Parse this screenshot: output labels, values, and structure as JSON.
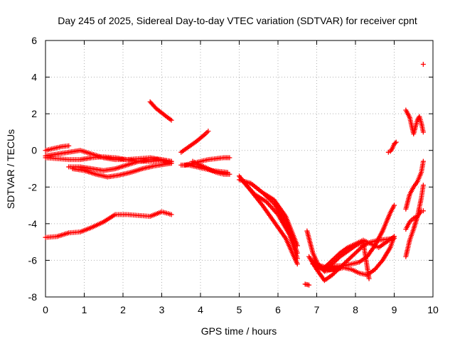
{
  "chart_data": {
    "type": "scatter",
    "title": "Day 245 of 2025, Sidereal Day-to-day VTEC variation (SDTVAR) for receiver cpnt",
    "xlabel": "GPS time / hours",
    "ylabel": "SDTVAR / TECUs",
    "xlim": [
      0,
      10
    ],
    "ylim": [
      -8,
      6
    ],
    "x_ticks": [
      "0",
      "1",
      "2",
      "3",
      "4",
      "5",
      "6",
      "7",
      "8",
      "9",
      "10"
    ],
    "y_ticks": [
      "-8",
      "-6",
      "-4",
      "-2",
      "0",
      "2",
      "4",
      "6"
    ],
    "grid": true,
    "marker": "+",
    "marker_color": "#ff0000",
    "series": [
      {
        "x": [
          0.0,
          0.2,
          0.4,
          0.6
        ],
        "y": [
          0.0,
          0.1,
          0.2,
          0.25
        ]
      },
      {
        "x": [
          0.0,
          0.3,
          0.6,
          0.9,
          1.2,
          1.5,
          1.8,
          2.1,
          2.4,
          2.7,
          3.0,
          3.25
        ],
        "y": [
          -0.3,
          -0.2,
          -0.1,
          0.0,
          -0.2,
          -0.4,
          -0.5,
          -0.5,
          -0.45,
          -0.4,
          -0.5,
          -0.6
        ]
      },
      {
        "x": [
          0.0,
          0.3,
          0.6,
          0.9,
          1.2,
          1.5,
          1.8,
          2.1,
          2.4,
          2.7,
          3.0,
          3.25
        ],
        "y": [
          -0.4,
          -0.45,
          -0.5,
          -0.5,
          -0.4,
          -0.35,
          -0.4,
          -0.5,
          -0.6,
          -0.6,
          -0.55,
          -0.7
        ]
      },
      {
        "x": [
          0.6,
          0.9,
          1.2,
          1.5,
          1.8,
          2.1,
          2.4,
          2.7,
          3.0,
          3.25
        ],
        "y": [
          -0.9,
          -0.9,
          -1.0,
          -1.1,
          -1.0,
          -0.8,
          -0.6,
          -0.5,
          -0.5,
          -0.6
        ]
      },
      {
        "x": [
          0.7,
          1.0,
          1.3,
          1.6,
          1.9,
          2.2,
          2.5,
          2.8,
          3.1,
          3.25
        ],
        "y": [
          -1.0,
          -1.1,
          -1.3,
          -1.45,
          -1.35,
          -1.2,
          -1.0,
          -0.85,
          -0.75,
          -0.7
        ]
      },
      {
        "x": [
          0.0,
          0.3,
          0.6,
          0.9,
          1.2,
          1.5,
          1.8,
          2.1,
          2.4,
          2.7,
          3.0,
          3.25
        ],
        "y": [
          -4.75,
          -4.7,
          -4.5,
          -4.45,
          -4.2,
          -3.9,
          -3.5,
          -3.5,
          -3.55,
          -3.6,
          -3.35,
          -3.5
        ]
      },
      {
        "x": [
          2.7,
          2.85,
          3.0,
          3.15,
          3.25
        ],
        "y": [
          2.65,
          2.3,
          2.05,
          1.8,
          1.65
        ]
      },
      {
        "x": [
          3.5,
          3.7,
          3.9,
          4.1,
          4.2
        ],
        "y": [
          -0.1,
          0.2,
          0.5,
          0.85,
          1.05
        ]
      },
      {
        "x": [
          3.5,
          3.7,
          3.9,
          4.1,
          4.3,
          4.5,
          4.7
        ],
        "y": [
          -0.8,
          -0.8,
          -0.9,
          -1.0,
          -1.1,
          -1.15,
          -1.2
        ]
      },
      {
        "x": [
          3.6,
          3.8,
          4.0,
          4.2,
          4.4,
          4.6,
          4.75
        ],
        "y": [
          -0.8,
          -0.7,
          -0.6,
          -0.5,
          -0.45,
          -0.4,
          -0.4
        ]
      },
      {
        "x": [
          3.8,
          4.0,
          4.2,
          4.4,
          4.6,
          4.75
        ],
        "y": [
          -0.6,
          -0.8,
          -1.0,
          -1.2,
          -1.3,
          -1.3
        ]
      },
      {
        "x": [
          5.0,
          5.3,
          5.6,
          5.9,
          6.2,
          6.5
        ],
        "y": [
          -1.4,
          -2.2,
          -3.0,
          -3.9,
          -4.8,
          -6.2
        ]
      },
      {
        "x": [
          5.0,
          5.3,
          5.6,
          5.9,
          6.2,
          6.5
        ],
        "y": [
          -1.6,
          -1.8,
          -2.3,
          -2.9,
          -3.9,
          -5.6
        ]
      },
      {
        "x": [
          5.1,
          5.4,
          5.7,
          6.0,
          6.3,
          6.5
        ],
        "y": [
          -1.7,
          -2.4,
          -2.8,
          -3.5,
          -4.6,
          -5.9
        ]
      },
      {
        "x": [
          5.3,
          5.6,
          5.9,
          6.2,
          6.5
        ],
        "y": [
          -1.8,
          -2.3,
          -2.7,
          -3.6,
          -5.2
        ]
      },
      {
        "x": [
          6.7,
          6.8
        ],
        "y": [
          -7.3,
          -7.35
        ]
      },
      {
        "x": [
          6.75,
          6.9,
          7.05,
          7.2,
          7.4,
          7.6
        ],
        "y": [
          -4.4,
          -5.6,
          -6.3,
          -6.6,
          -6.5,
          -6.4
        ]
      },
      {
        "x": [
          6.8,
          7.0,
          7.2,
          7.4,
          7.6,
          7.8,
          8.0,
          8.2,
          8.4,
          8.6,
          8.8,
          9.0
        ],
        "y": [
          -5.8,
          -6.5,
          -7.1,
          -6.8,
          -6.4,
          -6.0,
          -5.6,
          -5.2,
          -5.0,
          -4.9,
          -4.85,
          -4.8
        ]
      },
      {
        "x": [
          6.9,
          7.1,
          7.3,
          7.5,
          7.7,
          7.9,
          8.1,
          8.3,
          8.5,
          8.7,
          8.9,
          9.0
        ],
        "y": [
          -6.0,
          -6.3,
          -6.4,
          -6.3,
          -6.3,
          -6.2,
          -6.1,
          -5.8,
          -5.2,
          -4.4,
          -3.4,
          -3.0
        ]
      },
      {
        "x": [
          6.9,
          7.1,
          7.3,
          7.5,
          7.7,
          7.9,
          8.1,
          8.3,
          8.5,
          8.7,
          8.9,
          9.0
        ],
        "y": [
          -6.2,
          -6.4,
          -6.5,
          -6.5,
          -6.4,
          -6.5,
          -6.7,
          -6.8,
          -6.5,
          -6.0,
          -5.3,
          -4.7
        ]
      },
      {
        "x": [
          7.0,
          7.2,
          7.4,
          7.6,
          7.8,
          8.0,
          8.2,
          8.4,
          8.6,
          8.8,
          9.0
        ],
        "y": [
          -6.5,
          -6.4,
          -6.0,
          -5.6,
          -5.3,
          -5.1,
          -4.9,
          -5.1,
          -5.3,
          -5.0,
          -4.7
        ]
      },
      {
        "x": [
          7.2,
          7.4,
          7.6,
          7.8,
          8.0,
          8.2,
          8.35
        ],
        "y": [
          -6.6,
          -6.2,
          -5.8,
          -5.5,
          -5.2,
          -5.0,
          -7.0
        ]
      },
      {
        "x": [
          8.85,
          8.9,
          8.95,
          9.0,
          9.05
        ],
        "y": [
          -0.1,
          -0.05,
          0.1,
          0.35,
          0.45
        ]
      },
      {
        "x": [
          9.3,
          9.4,
          9.5,
          9.55,
          9.6,
          9.65,
          9.7,
          9.75
        ],
        "y": [
          2.2,
          1.8,
          0.9,
          1.3,
          1.65,
          1.85,
          1.5,
          1.0
        ]
      },
      {
        "x": [
          9.75
        ],
        "y": [
          4.7
        ]
      },
      {
        "x": [
          9.3,
          9.4,
          9.5,
          9.6,
          9.7,
          9.75
        ],
        "y": [
          -3.2,
          -2.4,
          -2.0,
          -1.7,
          -1.2,
          -0.6
        ]
      },
      {
        "x": [
          9.3,
          9.4,
          9.5,
          9.6,
          9.7,
          9.75
        ],
        "y": [
          -5.8,
          -4.9,
          -4.3,
          -3.6,
          -2.6,
          -1.9
        ]
      },
      {
        "x": [
          9.3,
          9.4,
          9.5,
          9.6,
          9.7,
          9.75
        ],
        "y": [
          -4.3,
          -3.9,
          -3.7,
          -3.6,
          -3.3,
          -3.3
        ]
      }
    ]
  }
}
